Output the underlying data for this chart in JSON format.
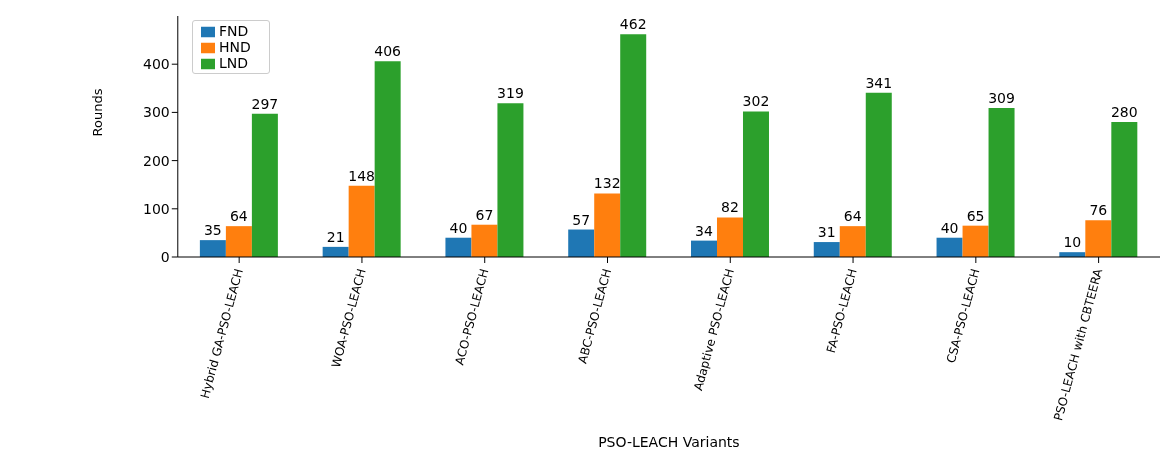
{
  "chart_data": {
    "type": "bar",
    "xlabel": "PSO-LEACH Variants",
    "ylabel": "Rounds",
    "categories": [
      "Hybrid GA-PSO-LEACH",
      "WOA-PSO-LEACH",
      "ACO-PSO-LEACH",
      "ABC-PSO-LEACH",
      "Adaptive PSO-LEACH",
      "FA-PSO-LEACH",
      "CSA-PSO-LEACH",
      "PSO-LEACH with CBTEERA"
    ],
    "series": [
      {
        "name": "FND",
        "color": "#1f77b4",
        "values": [
          35,
          21,
          40,
          57,
          34,
          31,
          40,
          10
        ]
      },
      {
        "name": "HND",
        "color": "#ff7f0e",
        "values": [
          64,
          148,
          67,
          132,
          82,
          64,
          65,
          76
        ]
      },
      {
        "name": "LND",
        "color": "#2ca02c",
        "values": [
          297,
          406,
          319,
          462,
          302,
          341,
          309,
          280
        ]
      }
    ],
    "ylim": [
      0,
      500
    ],
    "yticks": [
      0,
      100,
      200,
      300,
      400
    ],
    "data_labels": true,
    "legend": "top left"
  }
}
